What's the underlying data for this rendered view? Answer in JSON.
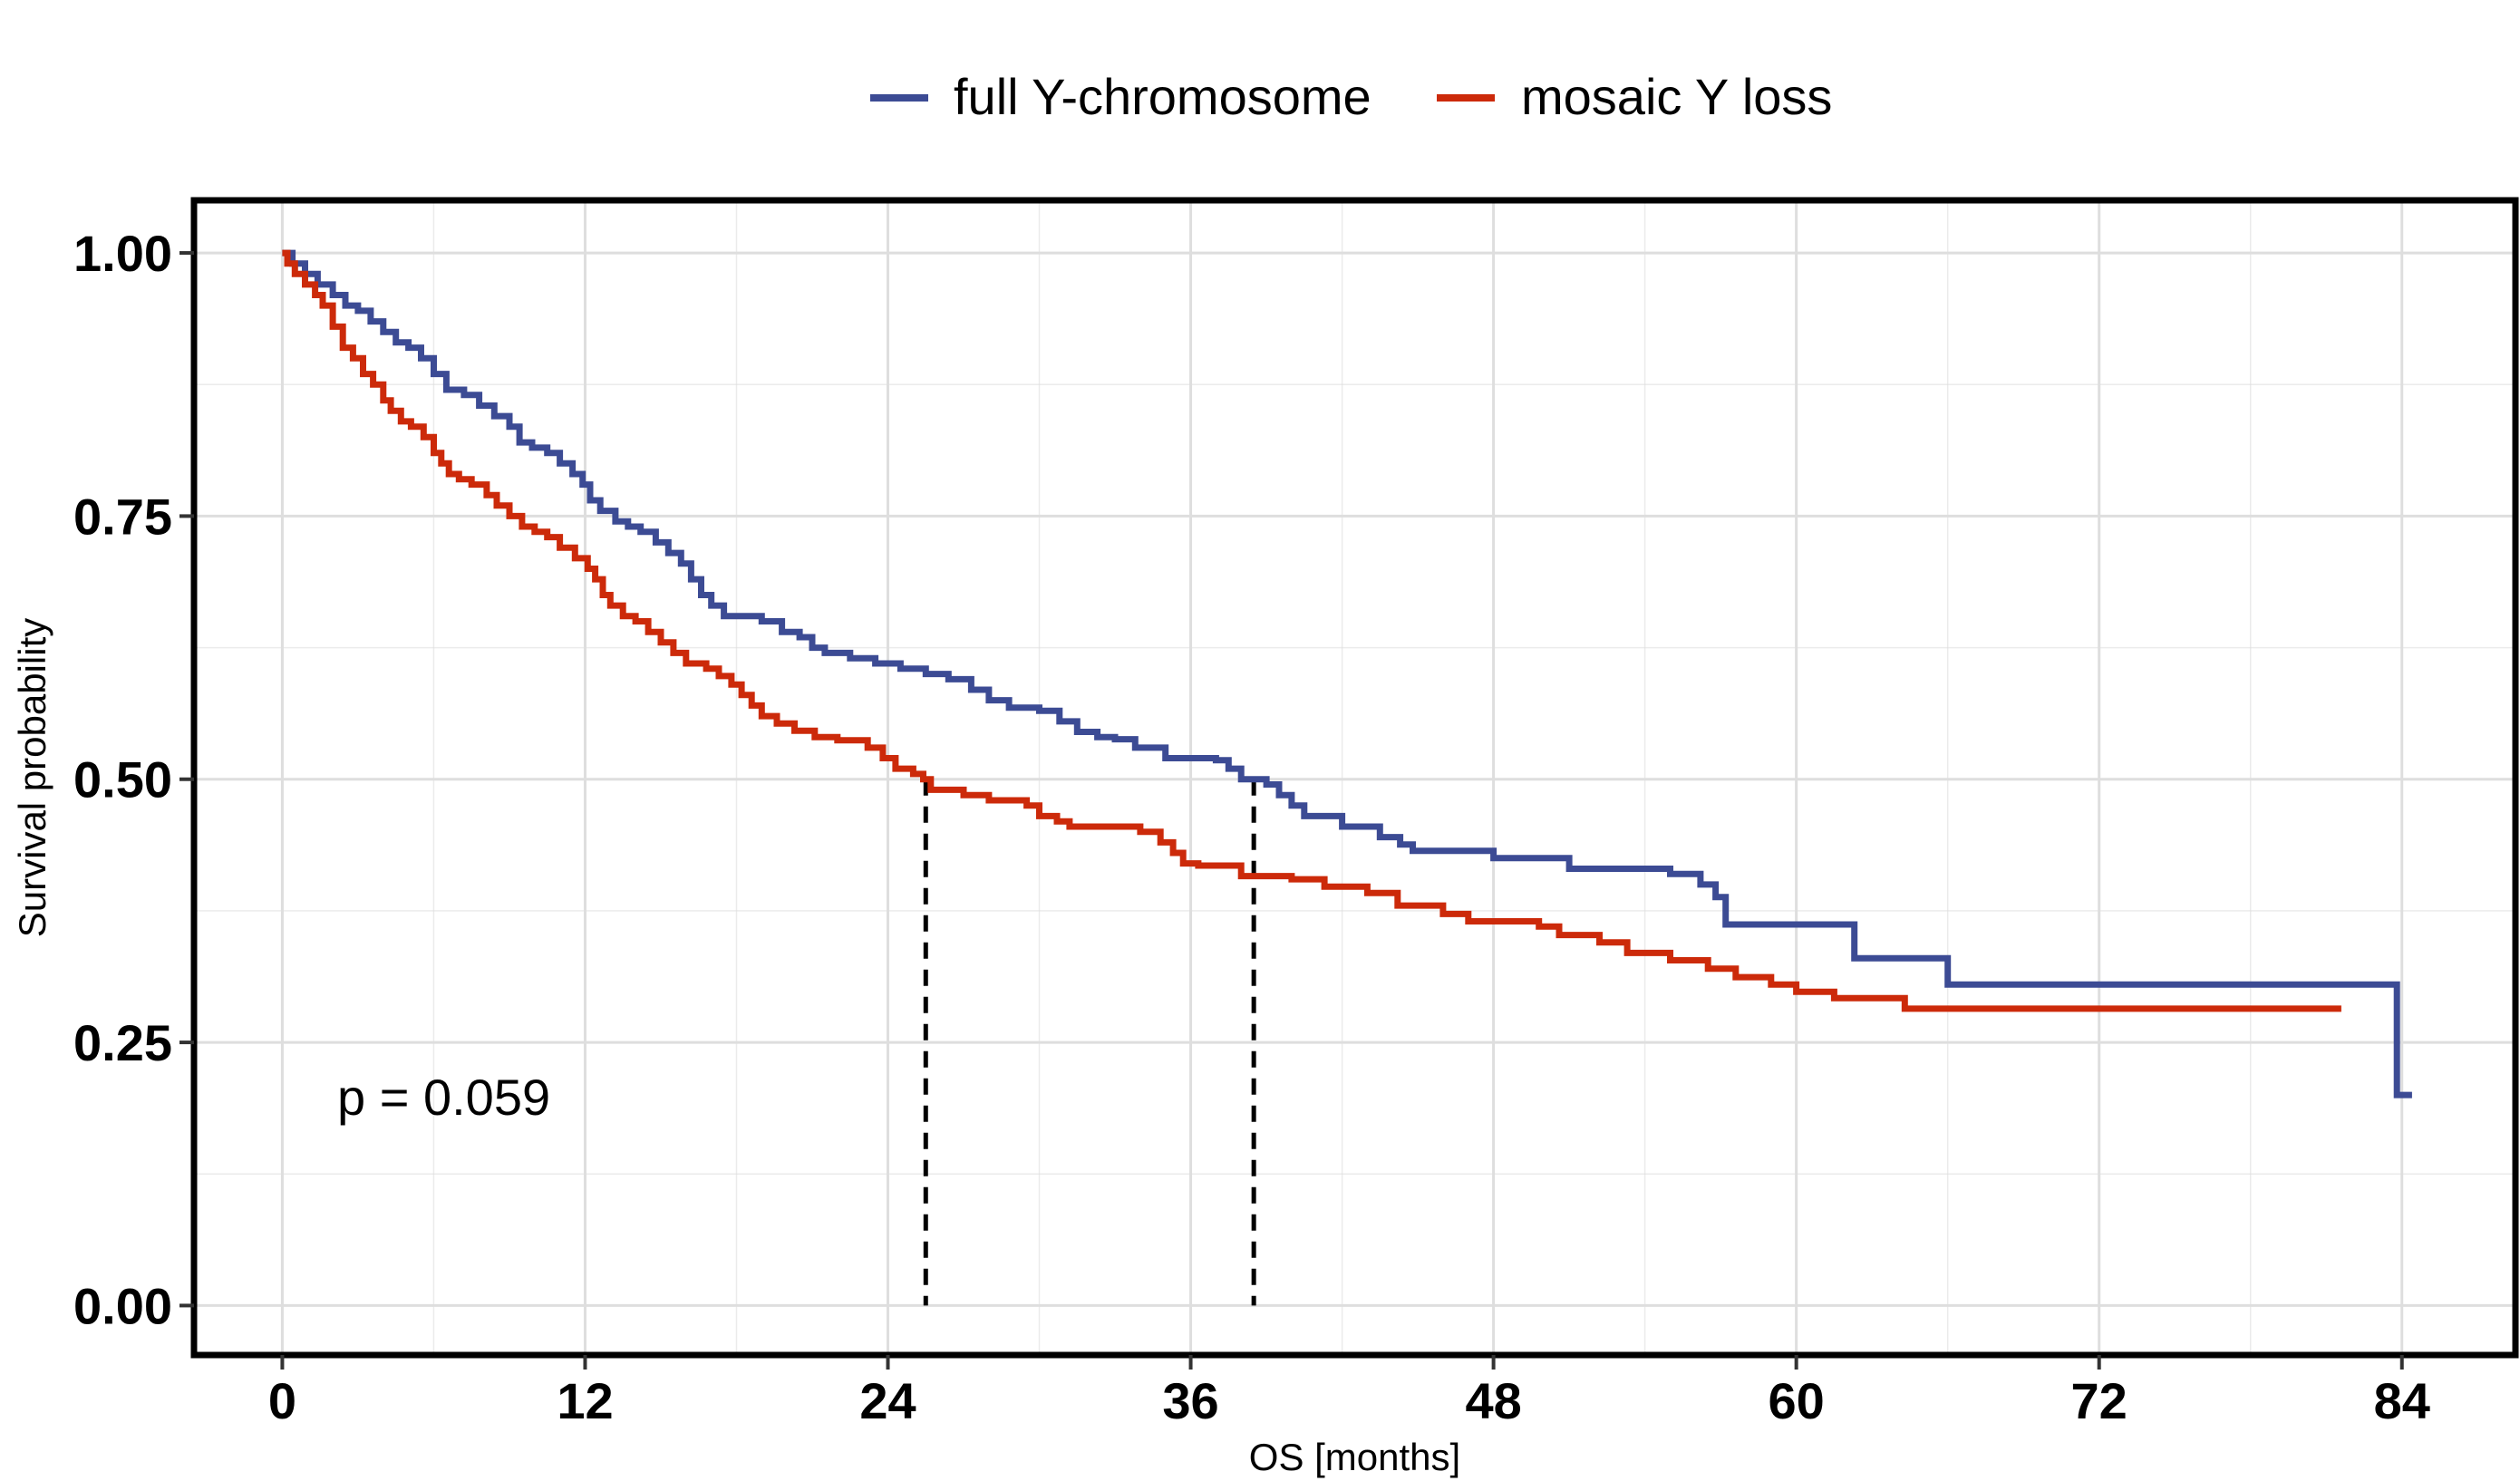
{
  "chart_data": {
    "type": "line",
    "subtype": "kaplan-meier-step",
    "title": "",
    "xlabel": "OS [months]",
    "ylabel": "Survival probability",
    "xlim": [
      -3.5,
      88.5
    ],
    "ylim": [
      -0.047,
      1.05
    ],
    "x_ticks": [
      0,
      12,
      24,
      36,
      48,
      60,
      72,
      84
    ],
    "x_tick_labels": [
      "0",
      "12",
      "24",
      "36",
      "48",
      "60",
      "72",
      "84"
    ],
    "y_ticks": [
      0,
      0.25,
      0.5,
      0.75,
      1
    ],
    "y_tick_labels": [
      "0.00",
      "0.25",
      "0.50",
      "0.75",
      "1.00"
    ],
    "grid": true,
    "legend_position": "top",
    "annotation": "p = 0.059",
    "colors": {
      "full": "#3c4b94",
      "mosaic": "#cc2a0a",
      "median_line": "#000000",
      "grid": "#dedede"
    },
    "series": [
      {
        "name": "full Y-chromosome",
        "color": "#3c4b94",
        "points": [
          [
            0,
            1.0
          ],
          [
            0.4,
            0.99
          ],
          [
            0.9,
            0.98
          ],
          [
            1.4,
            0.97
          ],
          [
            2.0,
            0.96
          ],
          [
            2.5,
            0.95
          ],
          [
            3.0,
            0.945
          ],
          [
            3.5,
            0.935
          ],
          [
            4.0,
            0.925
          ],
          [
            4.5,
            0.915
          ],
          [
            5.0,
            0.91
          ],
          [
            5.5,
            0.9
          ],
          [
            6.0,
            0.885
          ],
          [
            6.5,
            0.87
          ],
          [
            7.2,
            0.865
          ],
          [
            7.8,
            0.855
          ],
          [
            8.4,
            0.845
          ],
          [
            9.0,
            0.835
          ],
          [
            9.4,
            0.82
          ],
          [
            9.9,
            0.815
          ],
          [
            10.5,
            0.81
          ],
          [
            11.0,
            0.8
          ],
          [
            11.5,
            0.79
          ],
          [
            11.9,
            0.78
          ],
          [
            12.2,
            0.765
          ],
          [
            12.6,
            0.755
          ],
          [
            13.2,
            0.745
          ],
          [
            13.7,
            0.74
          ],
          [
            14.2,
            0.735
          ],
          [
            14.8,
            0.725
          ],
          [
            15.3,
            0.715
          ],
          [
            15.8,
            0.705
          ],
          [
            16.2,
            0.69
          ],
          [
            16.6,
            0.675
          ],
          [
            17.0,
            0.665
          ],
          [
            17.5,
            0.655
          ],
          [
            19.0,
            0.65
          ],
          [
            19.8,
            0.64
          ],
          [
            20.5,
            0.635
          ],
          [
            21.0,
            0.625
          ],
          [
            21.5,
            0.62
          ],
          [
            22.5,
            0.615
          ],
          [
            23.5,
            0.61
          ],
          [
            24.5,
            0.605
          ],
          [
            25.5,
            0.6
          ],
          [
            26.4,
            0.595
          ],
          [
            27.3,
            0.585
          ],
          [
            28.0,
            0.575
          ],
          [
            28.8,
            0.568
          ],
          [
            30.0,
            0.565
          ],
          [
            30.8,
            0.555
          ],
          [
            31.5,
            0.545
          ],
          [
            32.3,
            0.54
          ],
          [
            33.0,
            0.538
          ],
          [
            33.8,
            0.53
          ],
          [
            35.0,
            0.52
          ],
          [
            37.0,
            0.518
          ],
          [
            37.5,
            0.51
          ],
          [
            38.0,
            0.5
          ],
          [
            39.0,
            0.495
          ],
          [
            39.5,
            0.485
          ],
          [
            40.0,
            0.475
          ],
          [
            40.5,
            0.465
          ],
          [
            42.0,
            0.455
          ],
          [
            43.5,
            0.445
          ],
          [
            44.3,
            0.438
          ],
          [
            44.8,
            0.432
          ],
          [
            48.0,
            0.425
          ],
          [
            51.0,
            0.415
          ],
          [
            55.0,
            0.41
          ],
          [
            56.2,
            0.4
          ],
          [
            56.8,
            0.388
          ],
          [
            57.2,
            0.362
          ],
          [
            62.3,
            0.33
          ],
          [
            66.0,
            0.305
          ],
          [
            83.8,
            0.2
          ],
          [
            84.4,
            0.2
          ]
        ]
      },
      {
        "name": "mosaic Y loss",
        "color": "#cc2a0a",
        "points": [
          [
            0,
            1.0
          ],
          [
            0.2,
            0.99
          ],
          [
            0.5,
            0.98
          ],
          [
            0.9,
            0.97
          ],
          [
            1.3,
            0.96
          ],
          [
            1.6,
            0.95
          ],
          [
            2.0,
            0.93
          ],
          [
            2.4,
            0.91
          ],
          [
            2.8,
            0.9
          ],
          [
            3.2,
            0.885
          ],
          [
            3.6,
            0.875
          ],
          [
            4.0,
            0.86
          ],
          [
            4.3,
            0.85
          ],
          [
            4.7,
            0.84
          ],
          [
            5.1,
            0.835
          ],
          [
            5.6,
            0.825
          ],
          [
            6.0,
            0.81
          ],
          [
            6.3,
            0.8
          ],
          [
            6.6,
            0.79
          ],
          [
            7.0,
            0.785
          ],
          [
            7.5,
            0.78
          ],
          [
            8.1,
            0.77
          ],
          [
            8.5,
            0.76
          ],
          [
            9.0,
            0.75
          ],
          [
            9.5,
            0.74
          ],
          [
            10.0,
            0.735
          ],
          [
            10.5,
            0.73
          ],
          [
            11.0,
            0.72
          ],
          [
            11.6,
            0.71
          ],
          [
            12.1,
            0.7
          ],
          [
            12.4,
            0.69
          ],
          [
            12.7,
            0.675
          ],
          [
            13.0,
            0.665
          ],
          [
            13.5,
            0.655
          ],
          [
            14.0,
            0.65
          ],
          [
            14.5,
            0.64
          ],
          [
            15.0,
            0.63
          ],
          [
            15.5,
            0.62
          ],
          [
            16.0,
            0.61
          ],
          [
            16.8,
            0.605
          ],
          [
            17.3,
            0.598
          ],
          [
            17.8,
            0.59
          ],
          [
            18.2,
            0.58
          ],
          [
            18.6,
            0.57
          ],
          [
            19.0,
            0.56
          ],
          [
            19.6,
            0.553
          ],
          [
            20.3,
            0.546
          ],
          [
            21.1,
            0.54
          ],
          [
            22.0,
            0.537
          ],
          [
            23.2,
            0.53
          ],
          [
            23.8,
            0.52
          ],
          [
            24.3,
            0.51
          ],
          [
            25.0,
            0.505
          ],
          [
            25.4,
            0.5
          ],
          [
            25.7,
            0.49
          ],
          [
            27.0,
            0.485
          ],
          [
            28.0,
            0.48
          ],
          [
            29.5,
            0.475
          ],
          [
            30.0,
            0.465
          ],
          [
            30.7,
            0.46
          ],
          [
            31.2,
            0.455
          ],
          [
            34.0,
            0.45
          ],
          [
            34.8,
            0.44
          ],
          [
            35.3,
            0.43
          ],
          [
            35.7,
            0.42
          ],
          [
            36.3,
            0.418
          ],
          [
            38.0,
            0.408
          ],
          [
            40.0,
            0.405
          ],
          [
            41.3,
            0.398
          ],
          [
            43.0,
            0.392
          ],
          [
            44.2,
            0.38
          ],
          [
            46.0,
            0.372
          ],
          [
            47.0,
            0.365
          ],
          [
            49.8,
            0.36
          ],
          [
            50.6,
            0.352
          ],
          [
            52.2,
            0.345
          ],
          [
            53.3,
            0.335
          ],
          [
            55.0,
            0.328
          ],
          [
            56.5,
            0.32
          ],
          [
            57.6,
            0.312
          ],
          [
            59.0,
            0.305
          ],
          [
            60.0,
            0.298
          ],
          [
            61.5,
            0.292
          ],
          [
            64.3,
            0.282
          ],
          [
            81.6,
            0.282
          ]
        ]
      }
    ],
    "median_markers": [
      {
        "x": 25.5,
        "y": 0.5,
        "series": "mosaic Y loss"
      },
      {
        "x": 38.5,
        "y": 0.5,
        "series": "full Y-chromosome"
      }
    ]
  }
}
